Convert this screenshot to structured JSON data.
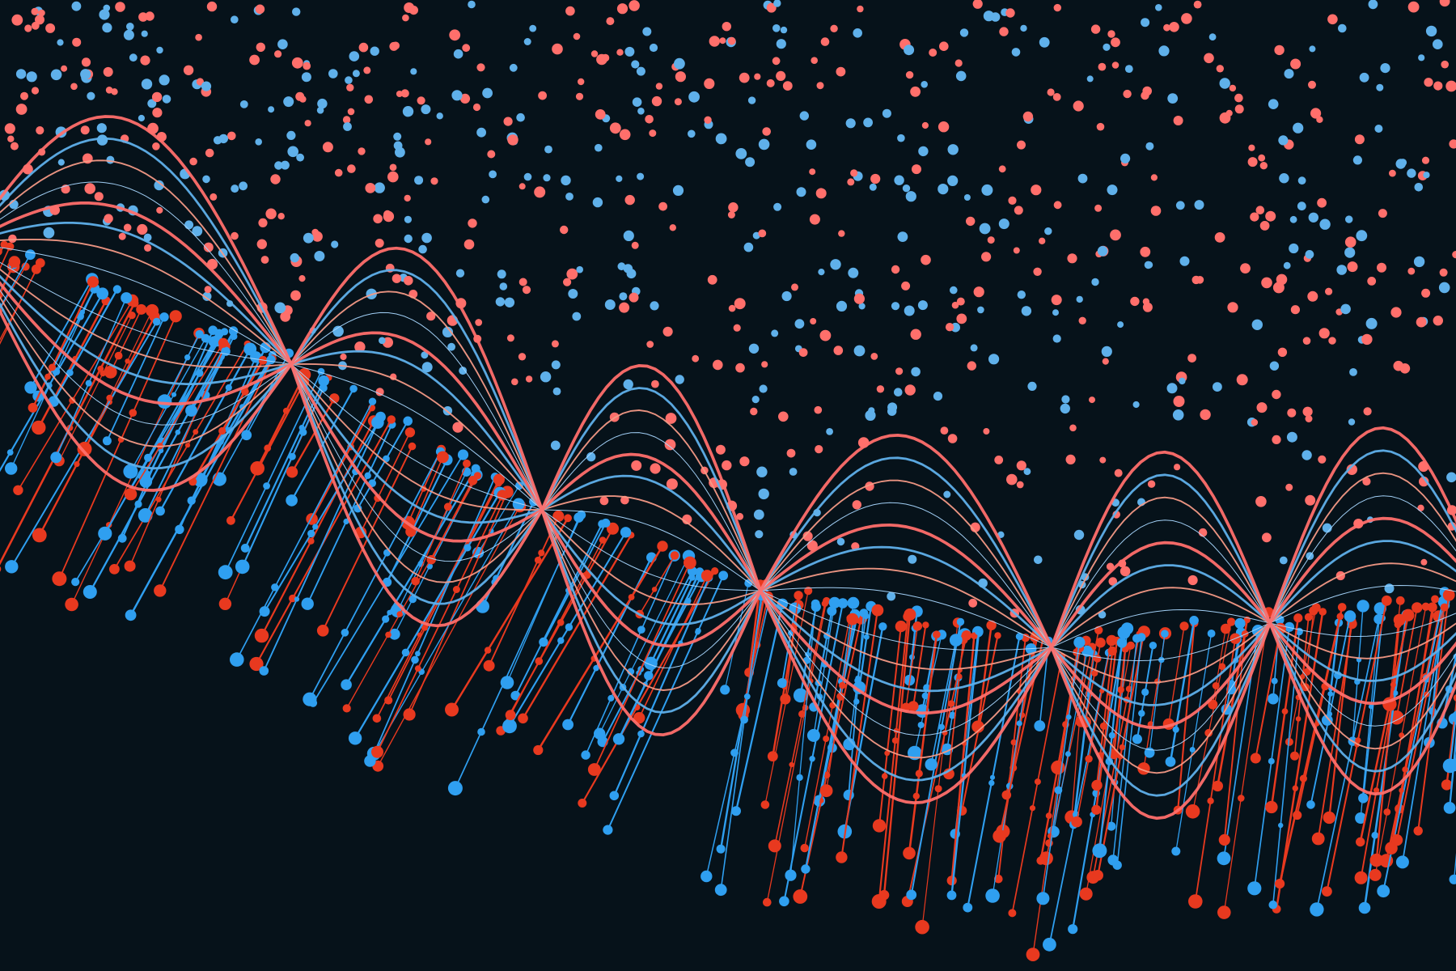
{
  "artwork": {
    "description_none": "",
    "palette": {
      "background": "#06121a",
      "red": "#e8391f",
      "blue": "#2f9ff0",
      "coral": "#ff6f6b",
      "sky": "#5fb0ea",
      "light_blue": "#a9d8ff",
      "salmon": "#f49a86"
    },
    "icons": {
      "spines": "spine-glyphs",
      "waves": "wave-curves",
      "dots": "scatter-dots"
    }
  }
}
